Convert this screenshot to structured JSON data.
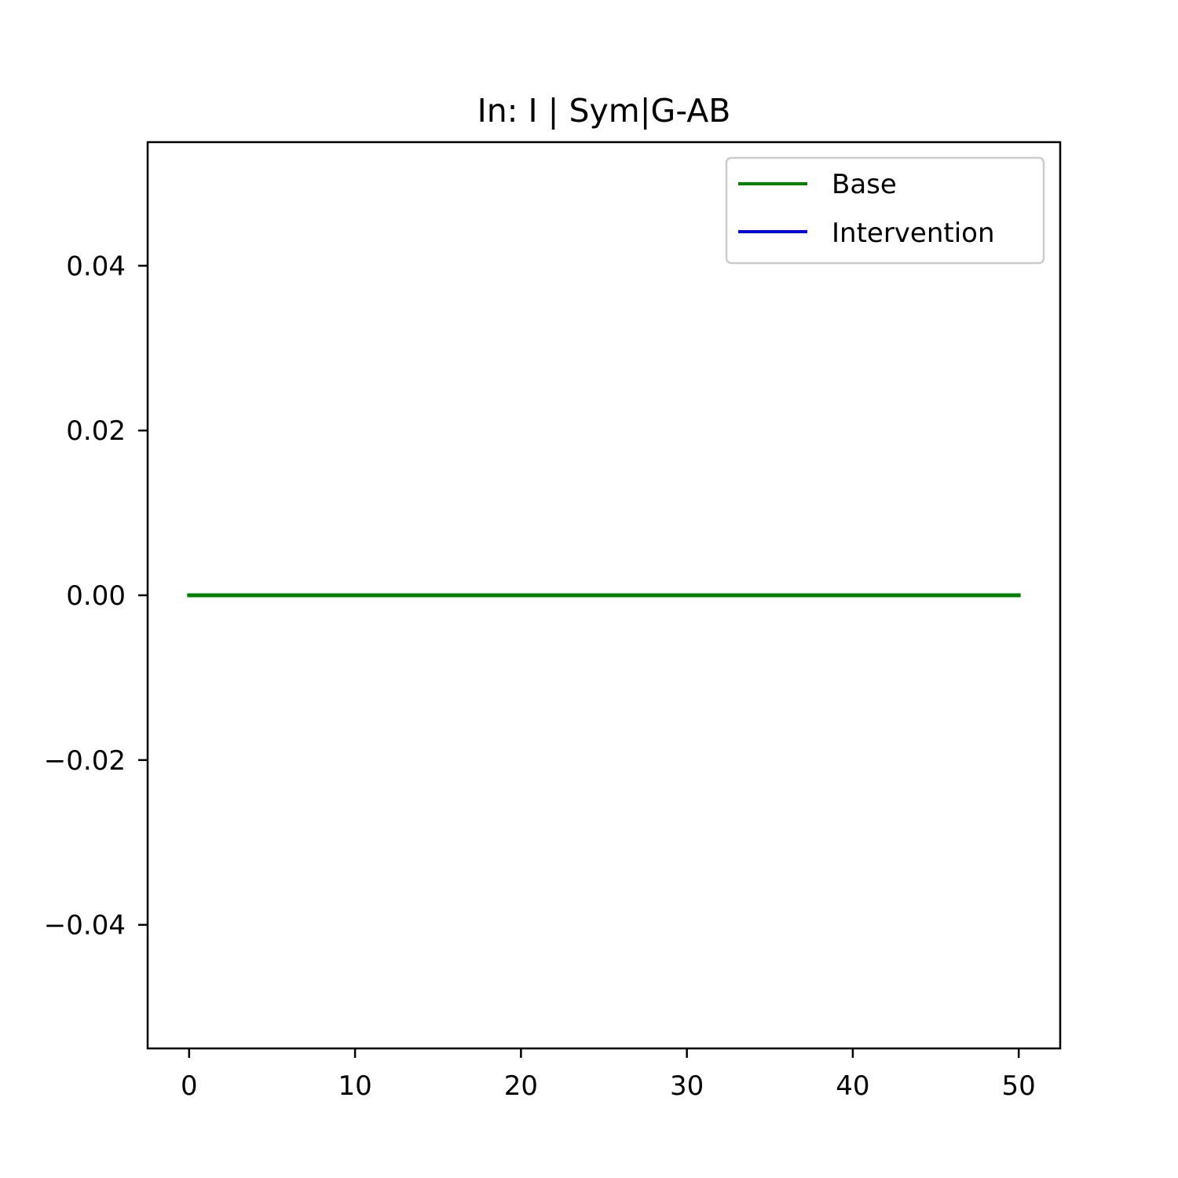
{
  "chart_data": {
    "type": "line",
    "title": "In: I | Sym|G-AB",
    "xlabel": "",
    "ylabel": "",
    "xlim": [
      -2.5,
      52.5
    ],
    "ylim": [
      -0.055,
      0.055
    ],
    "xticks": [
      0,
      10,
      20,
      30,
      40,
      50
    ],
    "xtick_labels": [
      "0",
      "10",
      "20",
      "30",
      "40",
      "50"
    ],
    "yticks": [
      0.04,
      0.02,
      0.0,
      -0.02,
      -0.04
    ],
    "ytick_labels": [
      "0.04",
      "0.02",
      "0.00",
      "−0.02",
      "−0.04"
    ],
    "grid": false,
    "legend_position": "top-right",
    "series": [
      {
        "name": "Base",
        "color": "#008000",
        "x": [
          0,
          5,
          10,
          15,
          20,
          25,
          30,
          35,
          40,
          45,
          50
        ],
        "y": [
          0,
          0,
          0,
          0,
          0,
          0,
          0,
          0,
          0,
          0,
          0
        ]
      },
      {
        "name": "Intervention",
        "color": "#0000ff",
        "x": [],
        "y": []
      }
    ]
  }
}
